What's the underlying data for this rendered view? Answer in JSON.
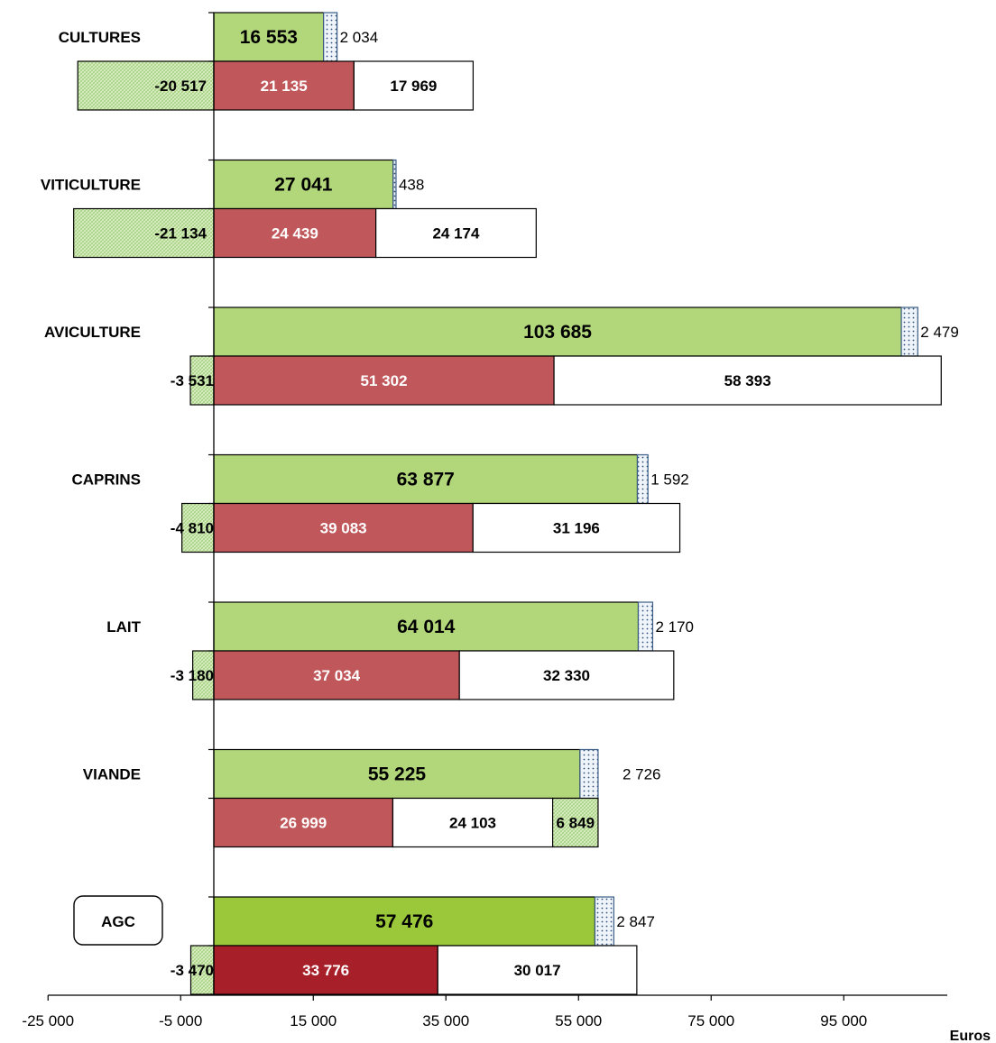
{
  "chart_data": {
    "type": "bar",
    "orientation": "horizontal",
    "stacked": true,
    "unit_label": "Euros",
    "xlim": [
      -25000,
      110000
    ],
    "x_ticks": [
      -25000,
      -5000,
      15000,
      35000,
      55000,
      75000,
      95000
    ],
    "x_tick_labels": [
      "-25 000",
      "-5 000",
      "15 000",
      "35 000",
      "55 000",
      "75 000",
      "95 000"
    ],
    "colors": {
      "green": "#b2d67a",
      "green_agc": "#9bc83a",
      "red": "#c0575a",
      "red_agc": "#a71f28",
      "white": "#ffffff",
      "hatch": "#cfe8b8",
      "dots": "#e9f2f8",
      "border": "#000000",
      "dots_border": "#3c5e86"
    },
    "categories": [
      {
        "name": "CULTURES",
        "top": [
          {
            "value": 16553,
            "label": "16 553",
            "style": "green"
          },
          {
            "value": 2034,
            "label": "2 034",
            "style": "dots"
          }
        ],
        "bottom": [
          {
            "value": -20517,
            "label": "-20 517",
            "style": "hatch"
          },
          {
            "value": 21135,
            "label": "21 135",
            "style": "red"
          },
          {
            "value": 17969,
            "label": "17 969",
            "style": "white"
          }
        ]
      },
      {
        "name": "VITICULTURE",
        "top": [
          {
            "value": 27041,
            "label": "27 041",
            "style": "green"
          },
          {
            "value": 438,
            "label": "438",
            "style": "dots"
          }
        ],
        "bottom": [
          {
            "value": -21134,
            "label": "-21 134",
            "style": "hatch"
          },
          {
            "value": 24439,
            "label": "24 439",
            "style": "red"
          },
          {
            "value": 24174,
            "label": "24 174",
            "style": "white"
          }
        ]
      },
      {
        "name": "AVICULTURE",
        "top": [
          {
            "value": 103685,
            "label": "103 685",
            "style": "green"
          },
          {
            "value": 2479,
            "label": "2 479",
            "style": "dots"
          }
        ],
        "bottom": [
          {
            "value": -3531,
            "label": "-3 531",
            "style": "hatch"
          },
          {
            "value": 51302,
            "label": "51 302",
            "style": "red"
          },
          {
            "value": 58393,
            "label": "58 393",
            "style": "white"
          }
        ]
      },
      {
        "name": "CAPRINS",
        "top": [
          {
            "value": 63877,
            "label": "63 877",
            "style": "green"
          },
          {
            "value": 1592,
            "label": "1 592",
            "style": "dots"
          }
        ],
        "bottom": [
          {
            "value": -4810,
            "label": "-4 810",
            "style": "hatch"
          },
          {
            "value": 39083,
            "label": "39 083",
            "style": "red"
          },
          {
            "value": 31196,
            "label": "31 196",
            "style": "white"
          }
        ]
      },
      {
        "name": "LAIT",
        "top": [
          {
            "value": 64014,
            "label": "64 014",
            "style": "green"
          },
          {
            "value": 2170,
            "label": "2 170",
            "style": "dots"
          }
        ],
        "bottom": [
          {
            "value": -3180,
            "label": "-3 180",
            "style": "hatch"
          },
          {
            "value": 37034,
            "label": "37 034",
            "style": "red"
          },
          {
            "value": 32330,
            "label": "32 330",
            "style": "white"
          }
        ]
      },
      {
        "name": "VIANDE",
        "top": [
          {
            "value": 55225,
            "label": "55 225",
            "style": "green"
          },
          {
            "value": 2726,
            "label": "2 726",
            "style": "dots"
          }
        ],
        "bottom": [
          {
            "value": 26999,
            "label": "26 999",
            "style": "red"
          },
          {
            "value": 24103,
            "label": "24 103",
            "style": "white"
          },
          {
            "value": 6849,
            "label": "6 849",
            "style": "hatch"
          }
        ]
      },
      {
        "name": "AGC",
        "boxed": true,
        "top": [
          {
            "value": 57476,
            "label": "57 476",
            "style": "green_agc"
          },
          {
            "value": 2847,
            "label": "2 847",
            "style": "dots"
          }
        ],
        "bottom": [
          {
            "value": -3470,
            "label": "-3 470",
            "style": "hatch"
          },
          {
            "value": 33776,
            "label": "33 776",
            "style": "red_agc"
          },
          {
            "value": 30017,
            "label": "30 017",
            "style": "white"
          }
        ]
      }
    ]
  }
}
